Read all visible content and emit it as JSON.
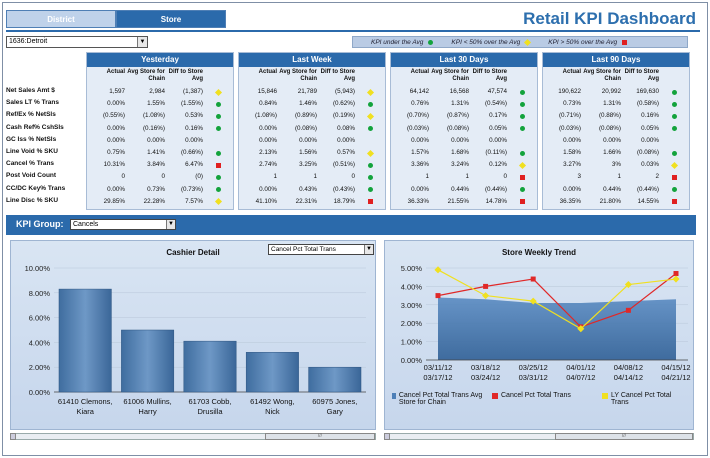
{
  "tabs": {
    "district": "District",
    "store": "Store"
  },
  "title": "Retail KPI Dashboard",
  "store_select": "1636:Detroit",
  "legend": {
    "under": "KPI under the Avg",
    "lt50": "KPI < 50% over the Avg",
    "gt50": "KPI > 50% over the Avg",
    "colors": {
      "green": "#13a33c",
      "yellow": "#f0e020",
      "red": "#e02020"
    }
  },
  "row_labels": [
    "Net Sales Amt $",
    "Sales LT % Trans",
    "Ref/Ex % NetSls",
    "Cash Ref% CshSls",
    "GC Iss % NetSls",
    "Line Void % SKU",
    "Cancel % Trans",
    "Post Void Count",
    "CC/DC Key% Trans",
    "Line Disc % SKU"
  ],
  "col_heads": {
    "actual": "Actual",
    "avg_store": "Avg Store for Chain",
    "diff": "Diff to Store Avg"
  },
  "periods": [
    {
      "name": "Yesterday",
      "rows": [
        [
          "1,597",
          "2,984",
          "(1,387)",
          "yellow"
        ],
        [
          "0.00%",
          "1.55%",
          "(1.55%)",
          "green"
        ],
        [
          "(0.55%)",
          "(1.08%)",
          "0.53%",
          "green"
        ],
        [
          "0.00%",
          "(0.16%)",
          "0.16%",
          "green"
        ],
        [
          "0.00%",
          "0.00%",
          "0.00%",
          ""
        ],
        [
          "0.75%",
          "1.41%",
          "(0.66%)",
          "green"
        ],
        [
          "10.31%",
          "3.84%",
          "6.47%",
          "red"
        ],
        [
          "0",
          "0",
          "(0)",
          "green"
        ],
        [
          "0.00%",
          "0.73%",
          "(0.73%)",
          "green"
        ],
        [
          "29.85%",
          "22.28%",
          "7.57%",
          "yellow"
        ]
      ]
    },
    {
      "name": "Last Week",
      "rows": [
        [
          "15,846",
          "21,789",
          "(5,943)",
          "yellow"
        ],
        [
          "0.84%",
          "1.46%",
          "(0.62%)",
          "green"
        ],
        [
          "(1.08%)",
          "(0.89%)",
          "(0.19%)",
          "yellow"
        ],
        [
          "0.00%",
          "(0.08%)",
          "0.08%",
          "green"
        ],
        [
          "0.00%",
          "0.00%",
          "0.00%",
          ""
        ],
        [
          "2.13%",
          "1.56%",
          "0.57%",
          "yellow"
        ],
        [
          "2.74%",
          "3.25%",
          "(0.51%)",
          "green"
        ],
        [
          "1",
          "1",
          "0",
          "green"
        ],
        [
          "0.00%",
          "0.43%",
          "(0.43%)",
          "green"
        ],
        [
          "41.10%",
          "22.31%",
          "18.79%",
          "red"
        ]
      ]
    },
    {
      "name": "Last 30 Days",
      "rows": [
        [
          "64,142",
          "16,568",
          "47,574",
          "green"
        ],
        [
          "0.76%",
          "1.31%",
          "(0.54%)",
          "green"
        ],
        [
          "(0.70%)",
          "(0.87%)",
          "0.17%",
          "green"
        ],
        [
          "(0.03%)",
          "(0.08%)",
          "0.05%",
          "green"
        ],
        [
          "0.00%",
          "0.00%",
          "0.00%",
          ""
        ],
        [
          "1.57%",
          "1.68%",
          "(0.11%)",
          "green"
        ],
        [
          "3.36%",
          "3.24%",
          "0.12%",
          "yellow"
        ],
        [
          "1",
          "1",
          "0",
          "red"
        ],
        [
          "0.00%",
          "0.44%",
          "(0.44%)",
          "green"
        ],
        [
          "36.33%",
          "21.55%",
          "14.78%",
          "red"
        ]
      ]
    },
    {
      "name": "Last 90 Days",
      "rows": [
        [
          "190,622",
          "20,992",
          "169,630",
          "green"
        ],
        [
          "0.73%",
          "1.31%",
          "(0.58%)",
          "green"
        ],
        [
          "(0.71%)",
          "(0.88%)",
          "0.16%",
          "green"
        ],
        [
          "(0.03%)",
          "(0.08%)",
          "0.05%",
          "green"
        ],
        [
          "0.00%",
          "0.00%",
          "0.00%",
          ""
        ],
        [
          "1.58%",
          "1.66%",
          "(0.08%)",
          "green"
        ],
        [
          "3.27%",
          "3%",
          "0.03%",
          "yellow"
        ],
        [
          "3",
          "1",
          "2",
          "red"
        ],
        [
          "0.00%",
          "0.44%",
          "(0.44%)",
          "green"
        ],
        [
          "36.35%",
          "21.80%",
          "14.55%",
          "red"
        ]
      ]
    }
  ],
  "kpi_group": {
    "label": "KPI Group:",
    "value": "Cancels"
  },
  "cashier": {
    "title": "Cashier Detail",
    "select": "Cancel Pct Total Trans"
  },
  "trend": {
    "title": "Store Weekly Trend",
    "legend": [
      "Cancel Pct Total Trans Avg Store for Chain",
      "Cancel Pct Total Trans",
      "LY Cancel Pct Total Trans"
    ],
    "colors": {
      "area": "#4d7fb7",
      "red": "#e02828",
      "yellow": "#f0e020"
    }
  },
  "scroll_grip": "///",
  "chart_data": [
    {
      "type": "bar",
      "title": "Cashier Detail",
      "categories": [
        "61410 Clemons, Kiara",
        "61006 Mullins, Harry",
        "61703 Cobb, Drusilla",
        "61492 Wong, Nick",
        "60975 Jones, Gary"
      ],
      "values": [
        8.3,
        5.0,
        4.1,
        3.2,
        2.0
      ],
      "ylim": [
        0,
        10
      ],
      "yticks": [
        "0.00%",
        "2.00%",
        "4.00%",
        "6.00%",
        "8.00%",
        "10.00%"
      ],
      "xlabel": "",
      "ylabel": ""
    },
    {
      "type": "line",
      "title": "Store Weekly Trend",
      "categories": [
        "03/11/12 03/17/12",
        "03/18/12 03/24/12",
        "03/25/12 03/31/12",
        "04/01/12 04/07/12",
        "04/08/12 04/14/12",
        "04/15/12 04/21/12"
      ],
      "ylim": [
        0,
        5
      ],
      "yticks": [
        "0.00%",
        "1.00%",
        "2.00%",
        "3.00%",
        "4.00%",
        "5.00%"
      ],
      "series": [
        {
          "name": "Cancel Pct Total Trans Avg Store for Chain",
          "type": "area",
          "values": [
            3.4,
            3.3,
            3.1,
            3.1,
            3.2,
            3.3
          ]
        },
        {
          "name": "Cancel Pct Total Trans",
          "values": [
            3.5,
            4.0,
            4.4,
            1.8,
            2.7,
            4.7
          ]
        },
        {
          "name": "LY Cancel Pct Total Trans",
          "values": [
            4.9,
            3.5,
            3.2,
            1.7,
            4.1,
            4.4
          ]
        }
      ]
    }
  ]
}
